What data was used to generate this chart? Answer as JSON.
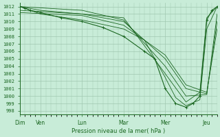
{
  "title": "",
  "xlabel": "Pression niveau de la mer( hPa )",
  "ylabel": "",
  "background_color": "#c8ecd8",
  "grid_color": "#a0c8b0",
  "line_color": "#1a6620",
  "ylim": [
    997.5,
    1012.5
  ],
  "yticks": [
    998,
    999,
    1000,
    1001,
    1002,
    1003,
    1004,
    1005,
    1006,
    1007,
    1008,
    1009,
    1010,
    1011,
    1012
  ],
  "day_labels": [
    "Dim",
    "Ven",
    "Lun",
    "Mar",
    "Mer",
    "Jeu"
  ],
  "day_positions": [
    0,
    24,
    72,
    120,
    168,
    216
  ],
  "xlim": [
    0,
    228
  ],
  "series": [
    [
      0,
      1012,
      6,
      1011.8,
      12,
      1011.5,
      24,
      1011.2,
      48,
      1010.5,
      72,
      1010.0,
      96,
      1009.2,
      120,
      1008.0,
      144,
      1006.0,
      156,
      1005.0,
      168,
      1001.0,
      180,
      999.0,
      192,
      998.5,
      200,
      999.0,
      208,
      1000.0,
      216,
      1010.2,
      222,
      1011.5,
      228,
      1012.0
    ],
    [
      0,
      1012,
      24,
      1011.0,
      72,
      1010.2,
      120,
      1009.0,
      144,
      1007.5,
      168,
      1002.5,
      180,
      999.8,
      192,
      998.7,
      208,
      999.5,
      216,
      1009.0,
      228,
      1012.0
    ],
    [
      0,
      1012,
      24,
      1011.5,
      72,
      1011.0,
      120,
      1010.5,
      168,
      1003.0,
      192,
      999.2,
      208,
      1000.5,
      216,
      1010.5,
      228,
      1012.0
    ],
    [
      0,
      1012,
      72,
      1011.5,
      120,
      1010.2,
      168,
      1004.0,
      192,
      1000.0,
      216,
      1000.2,
      228,
      1011.0
    ],
    [
      0,
      1011.5,
      72,
      1011.0,
      120,
      1010.0,
      168,
      1005.0,
      192,
      1001.0,
      216,
      1000.3,
      228,
      1010.0
    ],
    [
      0,
      1011.2,
      72,
      1010.8,
      120,
      1009.5,
      168,
      1005.5,
      192,
      1001.5,
      216,
      1000.5,
      228,
      1009.0
    ]
  ],
  "marker_series_idx": 0,
  "marker_size": 2.5
}
